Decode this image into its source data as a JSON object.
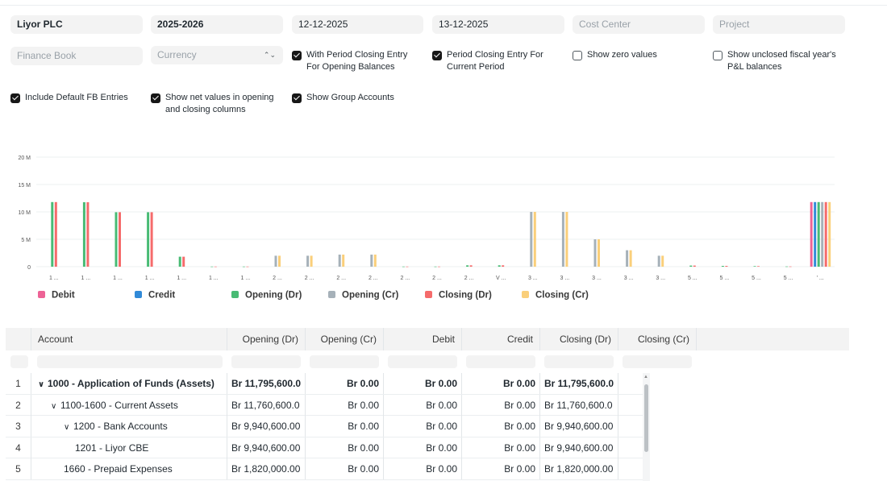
{
  "filters": {
    "company": "Liyor PLC",
    "fiscal_year": "2025-2026",
    "from_date": "12-12-2025",
    "to_date": "13-12-2025",
    "cost_center_placeholder": "Cost Center",
    "project_placeholder": "Project",
    "finance_book_placeholder": "Finance Book",
    "currency_placeholder": "Currency"
  },
  "checkboxes": [
    {
      "label": "With Period Closing Entry For Opening Balances",
      "checked": true
    },
    {
      "label": "Period Closing Entry For Current Period",
      "checked": true
    },
    {
      "label": "Show zero values",
      "checked": false
    },
    {
      "label": "Show unclosed fiscal year's P&L balances",
      "checked": false
    },
    {
      "label": "Include Default FB Entries",
      "checked": true
    },
    {
      "label": "Show net values in opening and closing columns",
      "checked": true
    },
    {
      "label": "Show Group Accounts",
      "checked": true
    }
  ],
  "chart_data": {
    "type": "bar",
    "y_ticks": [
      "0",
      "5 M",
      "10 M",
      "15 M",
      "20 M"
    ],
    "ylim": [
      0,
      20
    ],
    "grid": true,
    "legend_position": "bottom",
    "categories": [
      "1 ...",
      "1 ...",
      "1 ...",
      "1 ...",
      "1 ...",
      "1 ...",
      "1 ...",
      "2 ...",
      "2 ...",
      "2 ...",
      "2 ...",
      "2 ...",
      "2 ...",
      "2 ...",
      "V ...",
      "3 ...",
      "3 ...",
      "3 ...",
      "3 ...",
      "3 ...",
      "5 ...",
      "5 ...",
      "5 ...",
      "5 ...",
      "' ..."
    ],
    "series": [
      {
        "name": "Debit",
        "color": "#ed6396",
        "values": [
          0,
          0,
          0,
          0,
          0,
          0,
          0,
          0,
          0,
          0,
          0,
          0,
          0,
          0,
          0,
          0,
          0,
          0,
          0,
          0,
          0,
          0,
          0,
          0,
          11.8
        ]
      },
      {
        "name": "Credit",
        "color": "#318ad8",
        "values": [
          0,
          0,
          0,
          0,
          0,
          0,
          0,
          0,
          0,
          0,
          0,
          0,
          0,
          0,
          0,
          0,
          0,
          0,
          0,
          0,
          0,
          0,
          0,
          0,
          11.8
        ]
      },
      {
        "name": "Opening (Dr)",
        "color": "#48bb74",
        "values": [
          11.8,
          11.76,
          9.94,
          9.94,
          1.82,
          0.03,
          0.03,
          0,
          0,
          0,
          0,
          0.03,
          0.03,
          0.25,
          0.25,
          0,
          0,
          0,
          0,
          0,
          0.2,
          0.15,
          0.1,
          0.05,
          11.8
        ]
      },
      {
        "name": "Opening (Cr)",
        "color": "#a6b1b9",
        "values": [
          0,
          0,
          0,
          0,
          0,
          0,
          0,
          2,
          2,
          2.2,
          2.2,
          0,
          0,
          0,
          0,
          10,
          10,
          5,
          3,
          2,
          0,
          0,
          0,
          0,
          11.8
        ]
      },
      {
        "name": "Closing (Dr)",
        "color": "#f56b6b",
        "values": [
          11.8,
          11.76,
          9.94,
          9.94,
          1.82,
          0.03,
          0.03,
          0,
          0,
          0,
          0,
          0.03,
          0.03,
          0.25,
          0.25,
          0,
          0,
          0,
          0,
          0,
          0.2,
          0.15,
          0.1,
          0.05,
          11.8
        ]
      },
      {
        "name": "Closing (Cr)",
        "color": "#facf7a",
        "values": [
          0,
          0,
          0,
          0,
          0,
          0,
          0,
          2,
          2,
          2.2,
          2.2,
          0,
          0,
          0,
          0,
          10,
          10,
          5,
          3,
          2,
          0,
          0,
          0,
          0,
          11.8
        ]
      }
    ]
  },
  "table": {
    "columns": [
      "Account",
      "Opening (Dr)",
      "Opening (Cr)",
      "Debit",
      "Credit",
      "Closing (Dr)",
      "Closing (Cr)"
    ],
    "rows": [
      {
        "n": "1",
        "toggle": "∨",
        "account": "1000 - Application of Funds (Assets)",
        "od": "Br 11,795,600.0",
        "oc": "Br 0.00",
        "dr": "Br 0.00",
        "cr": "Br 0.00",
        "cd": "Br 11,795,600.0",
        "bold": true
      },
      {
        "n": "2",
        "toggle": "∨",
        "account": "1100-1600 - Current Assets",
        "od": "Br 11,760,600.0",
        "oc": "Br 0.00",
        "dr": "Br 0.00",
        "cr": "Br 0.00",
        "cd": "Br 11,760,600.0",
        "bold": false
      },
      {
        "n": "3",
        "toggle": "∨",
        "account": "1200 - Bank Accounts",
        "od": "Br 9,940,600.00",
        "oc": "Br 0.00",
        "dr": "Br 0.00",
        "cr": "Br 0.00",
        "cd": "Br 9,940,600.00",
        "bold": false
      },
      {
        "n": "4",
        "toggle": "",
        "account": "1201 - Liyor CBE",
        "od": "Br 9,940,600.00",
        "oc": "Br 0.00",
        "dr": "Br 0.00",
        "cr": "Br 0.00",
        "cd": "Br 9,940,600.00",
        "bold": false
      },
      {
        "n": "5",
        "toggle": "",
        "account": "1660 - Prepaid Expenses",
        "od": "Br 1,820,000.00",
        "oc": "Br 0.00",
        "dr": "Br 0.00",
        "cr": "Br 0.00",
        "cd": "Br 1,820,000.00",
        "bold": false
      }
    ]
  }
}
